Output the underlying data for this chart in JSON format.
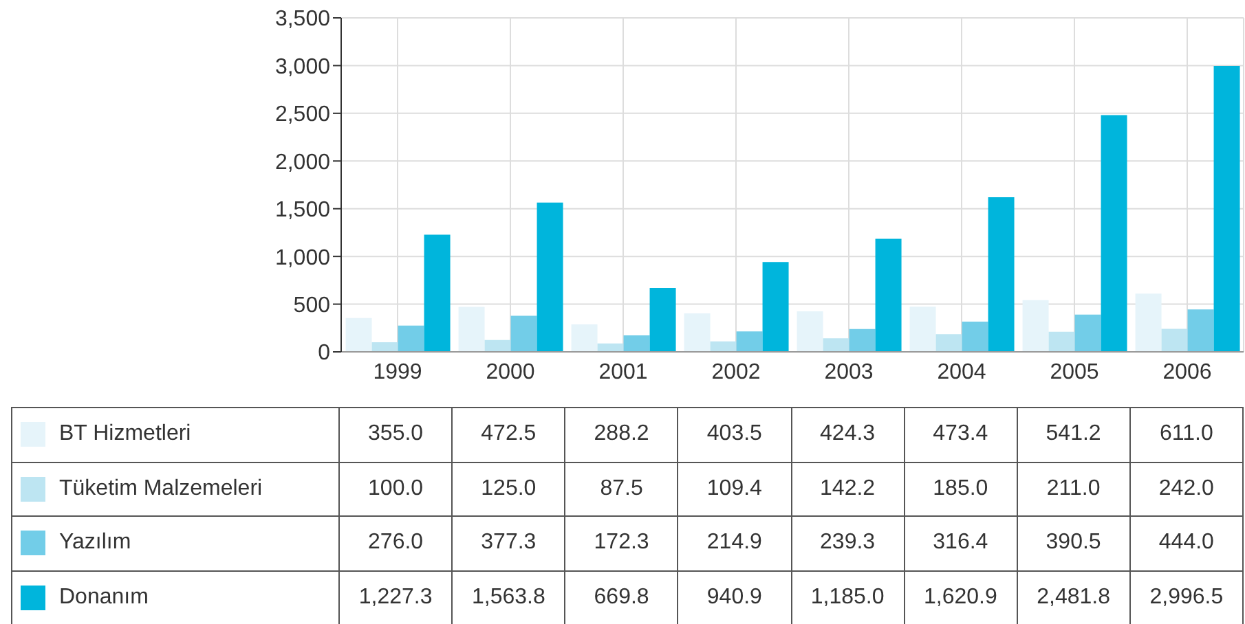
{
  "chart_data": {
    "type": "bar",
    "categories": [
      "1999",
      "2000",
      "2001",
      "2002",
      "2003",
      "2004",
      "2005",
      "2006"
    ],
    "series": [
      {
        "name": "BT Hizmetleri",
        "color": "#e6f4fa",
        "values": [
          355.0,
          472.5,
          288.2,
          403.5,
          424.3,
          473.4,
          541.2,
          611.0
        ],
        "value_labels": [
          "355.0",
          "472.5",
          "288.2",
          "403.5",
          "424.3",
          "473.4",
          "541.2",
          "611.0"
        ]
      },
      {
        "name": "Tüketim Malzemeleri",
        "color": "#bde5f2",
        "values": [
          100.0,
          125.0,
          87.5,
          109.4,
          142.2,
          185.0,
          211.0,
          242.0
        ],
        "value_labels": [
          "100.0",
          "125.0",
          "87.5",
          "109.4",
          "142.2",
          "185.0",
          "211.0",
          "242.0"
        ]
      },
      {
        "name": "Yazılım",
        "color": "#72cde8",
        "values": [
          276.0,
          377.3,
          172.3,
          214.9,
          239.3,
          316.4,
          390.5,
          444.0
        ],
        "value_labels": [
          "276.0",
          "377.3",
          "172.3",
          "214.9",
          "239.3",
          "316.4",
          "390.5",
          "444.0"
        ]
      },
      {
        "name": "Donanım",
        "color": "#00b5dc",
        "values": [
          1227.3,
          1563.8,
          669.8,
          940.9,
          1185.0,
          1620.9,
          2481.8,
          2996.5
        ],
        "value_labels": [
          "1,227.3",
          "1,563.8",
          "669.8",
          "940.9",
          "1,185.0",
          "1,620.9",
          "2,481.8",
          "2,996.5"
        ]
      }
    ],
    "ylim": [
      0,
      3500
    ],
    "yticks": [
      0,
      500,
      {
        "value": 1000,
        "label": "1,000"
      },
      {
        "value": 1500,
        "label": "1,500"
      },
      {
        "value": 2000,
        "label": "2,000"
      },
      {
        "value": 2500,
        "label": "2,500"
      },
      {
        "value": 3000,
        "label": "3,000"
      },
      {
        "value": 3500,
        "label": "3,500"
      }
    ],
    "grid": true,
    "legend": "bottom"
  }
}
